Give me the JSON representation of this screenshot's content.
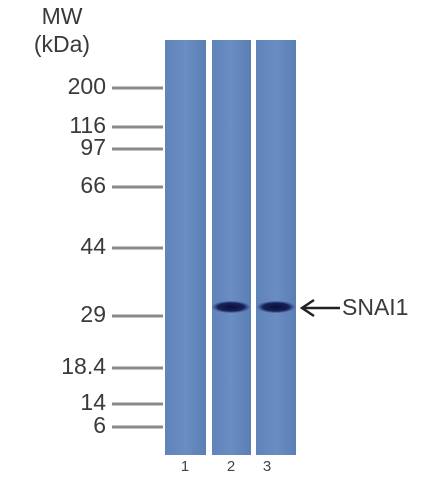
{
  "header": {
    "title": "MW",
    "unit": "(kDa)"
  },
  "markers": [
    "200",
    "116",
    "97",
    "66",
    "44",
    "29",
    "18.4",
    "14",
    "6"
  ],
  "lanes": [
    "1",
    "2",
    "3"
  ],
  "band": {
    "label": "SNAI1"
  }
}
